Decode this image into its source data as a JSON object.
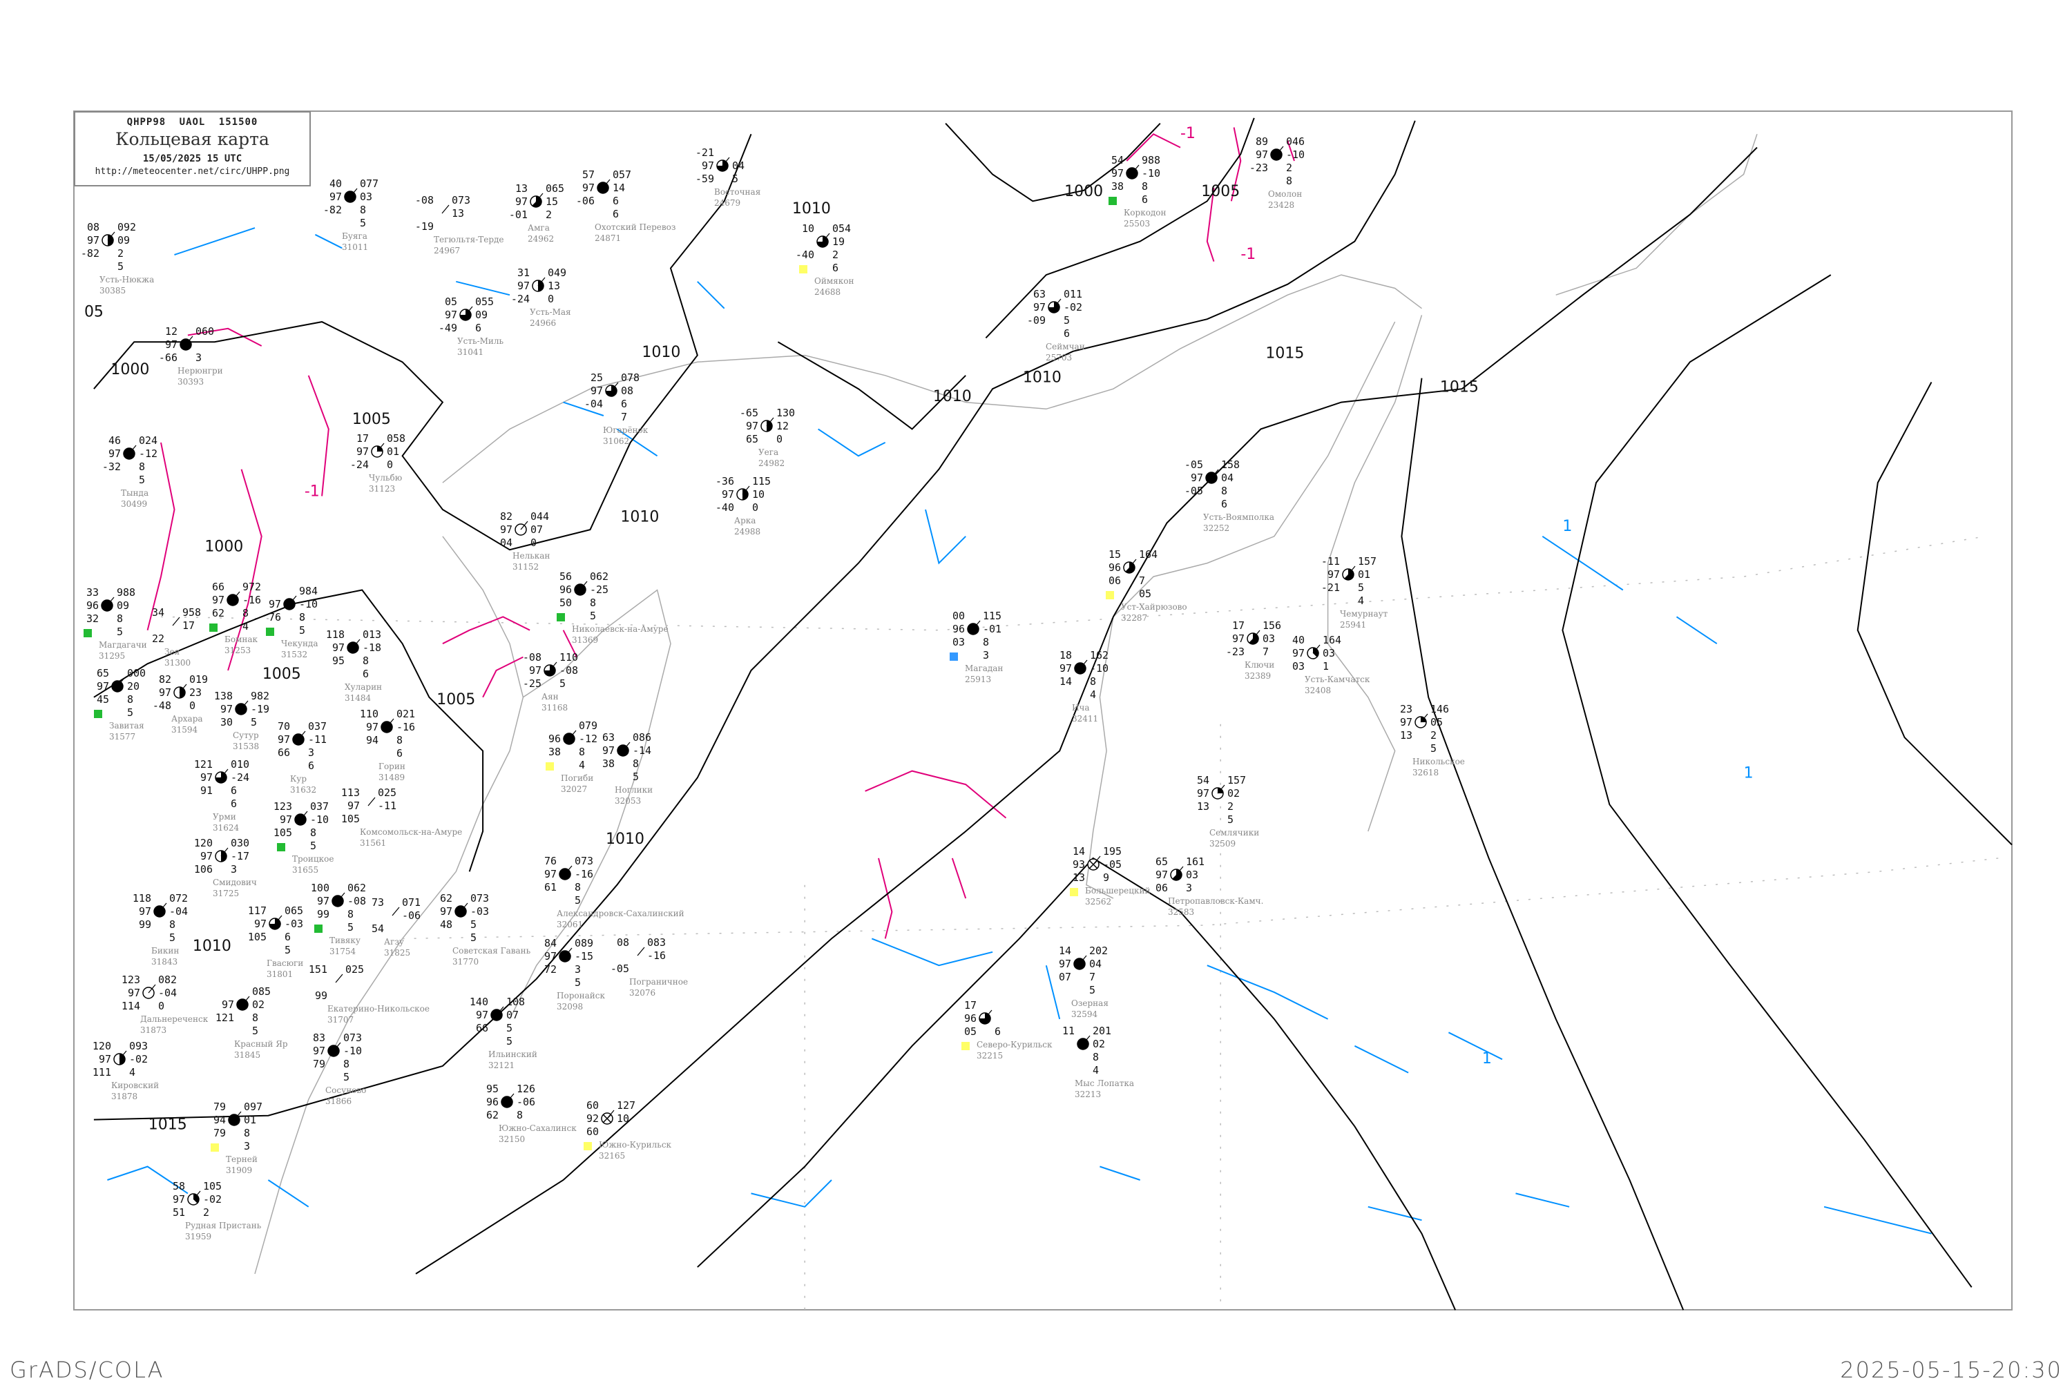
{
  "header": {
    "code": "QHPP98 UAOL 151500",
    "title": "Кольцевая карта",
    "datetime": "15/05/2025 15 UTC",
    "url": "http://meteocenter.net/circ/UHPP.png"
  },
  "footer": {
    "left": "GrADS/COLA",
    "right": "2025-05-15-20:30"
  },
  "colors": {
    "isobar": "#000000",
    "coast": "#aaaaaa",
    "temp_minus": "#e0007a",
    "temp_plus": "#0090ff",
    "precip_green": "#22bb33",
    "precip_yellow": "#ffff66",
    "precip_blue": "#3399ff",
    "frame": "#999999"
  },
  "isobar_labels": [
    "1000",
    "1000",
    "1000",
    "1005",
    "1005",
    "1005",
    "1005",
    "1010",
    "1010",
    "1010",
    "1010",
    "1010",
    "1010",
    "1010",
    "1015",
    "1015",
    "1015",
    "05"
  ],
  "isotherm_labels": [
    "-1",
    "-1",
    "-1",
    "1",
    "1",
    "1"
  ],
  "stations": [
    {
      "name": "Усть-Нюкжа",
      "id": "30385",
      "t": "08",
      "vv": "97",
      "td": "-82",
      "p": "092",
      "dp": "09",
      "extra": [
        "2",
        "5"
      ],
      "cover": 4
    },
    {
      "name": "Буяга",
      "id": "31011",
      "t": "40",
      "vv": "97",
      "td": "-82",
      "p": "077",
      "dp": "03",
      "extra": [
        "8",
        "5"
      ],
      "cover": 8
    },
    {
      "name": "Тегюльтя-Терде",
      "id": "24967",
      "t": "-08",
      "vv": "",
      "td": "-19",
      "p": "073",
      "dp": "13",
      "extra": [],
      "cover": -1
    },
    {
      "name": "Амга",
      "id": "24962",
      "t": "13",
      "vv": "97",
      "td": "-01",
      "p": "065",
      "dp": "15",
      "extra": [
        "2"
      ],
      "cover": 5
    },
    {
      "name": "Охотский Перевоз",
      "id": "24871",
      "t": "57",
      "vv": "97",
      "td": "-06",
      "p": "057",
      "dp": "14",
      "extra": [
        "6",
        "6"
      ],
      "cover": 8
    },
    {
      "name": "Усть-Мая",
      "id": "24966",
      "t": "31",
      "vv": "97",
      "td": "-24",
      "p": "049",
      "dp": "13",
      "extra": [
        "0"
      ],
      "cover": 4
    },
    {
      "name": "Усть-Миль",
      "id": "31041",
      "t": "05",
      "vv": "97",
      "td": "-49",
      "p": "055",
      "dp": "09",
      "extra": [
        "6"
      ],
      "cover": 6
    },
    {
      "name": "Нерюнгри",
      "id": "30393",
      "t": "12",
      "vv": "97",
      "td": "-66",
      "p": "060",
      "dp": "",
      "extra": [
        "3"
      ],
      "cover": 8
    },
    {
      "name": "Чульбю",
      "id": "31123",
      "t": "17",
      "vv": "97",
      "td": "-24",
      "p": "058",
      "dp": "01",
      "extra": [
        "0"
      ],
      "cover": 2
    },
    {
      "name": "Югарёнок",
      "id": "31062",
      "t": "25",
      "vv": "97",
      "td": "-04",
      "p": "078",
      "dp": "08",
      "extra": [
        "6",
        "7"
      ],
      "cover": 6
    },
    {
      "name": "Тында",
      "id": "30499",
      "t": "46",
      "vv": "97",
      "td": "-32",
      "p": "024",
      "dp": "-12",
      "extra": [
        "8",
        "5"
      ],
      "cover": 8
    },
    {
      "name": "Нелькан",
      "id": "31152",
      "t": "82",
      "vv": "97",
      "td": "04",
      "p": "044",
      "dp": "07",
      "extra": [
        "0"
      ],
      "cover": 0
    },
    {
      "name": "Магдагачи",
      "id": "31295",
      "t": "33",
      "vv": "96",
      "td": "32",
      "p": "988",
      "dp": "09",
      "extra": [
        "8",
        "5"
      ],
      "cover": 8
    },
    {
      "name": "Бомнак",
      "id": "31253",
      "t": "66",
      "vv": "97",
      "td": "62",
      "p": "972",
      "dp": "-16",
      "extra": [
        "8",
        "4"
      ],
      "cover": 8
    },
    {
      "name": "Зея",
      "id": "31300",
      "t": "34",
      "vv": "",
      "td": "22",
      "p": "958",
      "dp": "17",
      "extra": [],
      "cover": -1
    },
    {
      "name": "Аян",
      "id": "31168",
      "t": "-08",
      "vv": "97",
      "td": "-25",
      "p": "110",
      "dp": "-08",
      "extra": [
        "5"
      ],
      "cover": 6
    },
    {
      "name": "Восточная",
      "id": "24679",
      "t": "-21",
      "vv": "97",
      "td": "-59",
      "p": "",
      "dp": "04",
      "extra": [
        "5"
      ],
      "cover": 6
    },
    {
      "name": "Оймякон",
      "id": "24688",
      "t": "10",
      "vv": "",
      "td": "-40",
      "p": "054",
      "dp": "19",
      "extra": [
        "2",
        "6"
      ],
      "cover": 6
    },
    {
      "name": "Коркодон",
      "id": "25503",
      "t": "54",
      "vv": "97",
      "td": "38",
      "p": "988",
      "dp": "-10",
      "extra": [
        "8",
        "6"
      ],
      "cover": 8
    },
    {
      "name": "Омолон",
      "id": "23428",
      "t": "89",
      "vv": "97",
      "td": "-23",
      "p": "046",
      "dp": "-10",
      "extra": [
        "2",
        "8"
      ],
      "cover": 8
    },
    {
      "name": "Сеймчан",
      "id": "25703",
      "t": "63",
      "vv": "97",
      "td": "-09",
      "p": "011",
      "dp": "-02",
      "extra": [
        "5",
        "6"
      ],
      "cover": 6
    },
    {
      "name": "Уега",
      "id": "24982",
      "t": "-65",
      "vv": "97",
      "td": "65",
      "p": "130",
      "dp": "12",
      "extra": [
        "0"
      ],
      "cover": 4
    },
    {
      "name": "Арка",
      "id": "24988",
      "t": "-36",
      "vv": "97",
      "td": "-40",
      "p": "115",
      "dp": "10",
      "extra": [
        "0"
      ],
      "cover": 4
    },
    {
      "name": "Магадан",
      "id": "25913",
      "t": "00",
      "vv": "96",
      "td": "03",
      "p": "115",
      "dp": "-01",
      "extra": [
        "8",
        "3"
      ],
      "cover": 8
    },
    {
      "name": "Чемурнаут",
      "id": "25941",
      "t": "-11",
      "vv": "97",
      "td": "-21",
      "p": "157",
      "dp": "01",
      "extra": [
        "5",
        "4"
      ],
      "cover": 5
    },
    {
      "name": "Усть-Воямполка",
      "id": "32252",
      "t": "-05",
      "vv": "97",
      "td": "-05",
      "p": "158",
      "dp": "04",
      "extra": [
        "8",
        "6"
      ],
      "cover": 8
    },
    {
      "name": "Уст-Хайрюзово",
      "id": "32287",
      "t": "15",
      "vv": "96",
      "td": "06",
      "p": "164",
      "dp": "",
      "extra": [
        "7",
        "05"
      ],
      "cover": 5
    },
    {
      "name": "Ключи",
      "id": "32389",
      "t": "17",
      "vv": "97",
      "td": "-23",
      "p": "156",
      "dp": "03",
      "extra": [
        "7"
      ],
      "cover": 5
    },
    {
      "name": "Усть-Камчатск",
      "id": "32408",
      "t": "40",
      "vv": "97",
      "td": "03",
      "p": "164",
      "dp": "03",
      "extra": [
        "1"
      ],
      "cover": 3
    },
    {
      "name": "Ича",
      "id": "32411",
      "t": "18",
      "vv": "97",
      "td": "14",
      "p": "162",
      "dp": "-10",
      "extra": [
        "8",
        "4"
      ],
      "cover": 8
    },
    {
      "name": "Никольское",
      "id": "32618",
      "t": "23",
      "vv": "97",
      "td": "13",
      "p": "146",
      "dp": "05",
      "extra": [
        "2",
        "5"
      ],
      "cover": 2
    },
    {
      "name": "Семлячики",
      "id": "32509",
      "t": "54",
      "vv": "97",
      "td": "13",
      "p": "157",
      "dp": "02",
      "extra": [
        "2",
        "5"
      ],
      "cover": 2
    },
    {
      "name": "Большерецкий",
      "id": "32562",
      "t": "14",
      "vv": "93",
      "td": "13",
      "p": "195",
      "dp": "-05",
      "extra": [
        "9"
      ],
      "cover": 9
    },
    {
      "name": "Петропавловск-Камч.",
      "id": "32583",
      "t": "65",
      "vv": "97",
      "td": "06",
      "p": "161",
      "dp": "03",
      "extra": [
        "3"
      ],
      "cover": 5
    },
    {
      "name": "Озерная",
      "id": "32594",
      "t": "14",
      "vv": "97",
      "td": "07",
      "p": "202",
      "dp": "04",
      "extra": [
        "7",
        "5"
      ],
      "cover": 8
    },
    {
      "name": "Мыс Лопатка",
      "id": "32213",
      "t": "11",
      "vv": "",
      "td": "",
      "p": "201",
      "dp": "02",
      "extra": [
        "8",
        "4"
      ],
      "cover": 8
    },
    {
      "name": "Северо-Курильск",
      "id": "32215",
      "t": "17",
      "vv": "96",
      "td": "05",
      "p": "",
      "dp": "",
      "extra": [
        "6"
      ],
      "cover": 6
    },
    {
      "name": "Завитая",
      "id": "31577",
      "t": "65",
      "vv": "97",
      "td": "45",
      "p": "000",
      "dp": "20",
      "extra": [
        "8",
        "5"
      ],
      "cover": 8
    },
    {
      "name": "Архара",
      "id": "31594",
      "t": "82",
      "vv": "97",
      "td": "-48",
      "p": "019",
      "dp": "23",
      "extra": [
        "0"
      ],
      "cover": 4
    },
    {
      "name": "Сутур",
      "id": "31538",
      "t": "138",
      "vv": "97",
      "td": "30",
      "p": "982",
      "dp": "-19",
      "extra": [
        "5"
      ],
      "cover": 8
    },
    {
      "name": "Чекунда",
      "id": "31532",
      "t": "",
      "vv": "97",
      "td": "76",
      "p": "984",
      "dp": "-10",
      "extra": [
        "8",
        "5"
      ],
      "cover": 8
    },
    {
      "name": "Хуларин",
      "id": "31484",
      "t": "118",
      "vv": "97",
      "td": "95",
      "p": "013",
      "dp": "-18",
      "extra": [
        "8",
        "6"
      ],
      "cover": 8
    },
    {
      "name": "Горин",
      "id": "31489",
      "t": "110",
      "vv": "97",
      "td": "94",
      "p": "021",
      "dp": "-16",
      "extra": [
        "8",
        "6"
      ],
      "cover": 8
    },
    {
      "name": "Кур",
      "id": "31632",
      "t": "70",
      "vv": "97",
      "td": "66",
      "p": "037",
      "dp": "-11",
      "extra": [
        "3",
        "6"
      ],
      "cover": 8
    },
    {
      "name": "Урми",
      "id": "31624",
      "t": "121",
      "vv": "97",
      "td": "91",
      "p": "010",
      "dp": "-24",
      "extra": [
        "6",
        "6"
      ],
      "cover": 6
    },
    {
      "name": "Комсомольск-на-Амуре",
      "id": "31561",
      "t": "113",
      "vv": "97",
      "td": "105",
      "p": "025",
      "dp": "-11",
      "extra": [],
      "cover": -1
    },
    {
      "name": "Троицкое",
      "id": "31655",
      "t": "123",
      "vv": "97",
      "td": "105",
      "p": "037",
      "dp": "-10",
      "extra": [
        "8",
        "5"
      ],
      "cover": 8
    },
    {
      "name": "Тивяку",
      "id": "31754",
      "t": "100",
      "vv": "97",
      "td": "99",
      "p": "062",
      "dp": "-08",
      "extra": [
        "8",
        "5"
      ],
      "cover": 8
    },
    {
      "name": "Гвасюги",
      "id": "31801",
      "t": "117",
      "vv": "97",
      "td": "105",
      "p": "065",
      "dp": "-03",
      "extra": [
        "6",
        "5"
      ],
      "cover": 6
    },
    {
      "name": "Советская Гавань",
      "id": "31770",
      "t": "62",
      "vv": "97",
      "td": "48",
      "p": "073",
      "dp": "-03",
      "extra": [
        "5",
        "5"
      ],
      "cover": 8
    },
    {
      "name": "Николаевск-на-Амуре",
      "id": "31369",
      "t": "56",
      "vv": "96",
      "td": "50",
      "p": "062",
      "dp": "-25",
      "extra": [
        "8",
        "5"
      ],
      "cover": 8
    },
    {
      "name": "Погиби",
      "id": "32027",
      "t": "",
      "vv": "96",
      "td": "38",
      "p": "079",
      "dp": "-12",
      "extra": [
        "8",
        "4"
      ],
      "cover": 8
    },
    {
      "name": "Ноглики",
      "id": "32053",
      "t": "63",
      "vv": "97",
      "td": "38",
      "p": "086",
      "dp": "-14",
      "extra": [
        "8",
        "5"
      ],
      "cover": 8
    },
    {
      "name": "Александровск-Сахалинский",
      "id": "32061",
      "t": "76",
      "vv": "97",
      "td": "61",
      "p": "073",
      "dp": "-16",
      "extra": [
        "8",
        "5"
      ],
      "cover": 8
    },
    {
      "name": "Поронайск",
      "id": "32098",
      "t": "84",
      "vv": "97",
      "td": "72",
      "p": "089",
      "dp": "-15",
      "extra": [
        "3",
        "5"
      ],
      "cover": 8
    },
    {
      "name": "Ильинский",
      "id": "32121",
      "t": "140",
      "vv": "97",
      "td": "66",
      "p": "108",
      "dp": "07",
      "extra": [
        "5",
        "5"
      ],
      "cover": 8
    },
    {
      "name": "Южно-Сахалинск",
      "id": "32150",
      "t": "95",
      "vv": "96",
      "td": "62",
      "p": "126",
      "dp": "-06",
      "extra": [
        "8"
      ],
      "cover": 8
    },
    {
      "name": "Терней",
      "id": "31909",
      "t": "79",
      "vv": "94",
      "td": "79",
      "p": "097",
      "dp": "01",
      "extra": [
        "8",
        "3"
      ],
      "cover": 8
    },
    {
      "name": "Рудная Пристань",
      "id": "31959",
      "t": "58",
      "vv": "97",
      "td": "51",
      "p": "105",
      "dp": "-02",
      "extra": [
        "2"
      ],
      "cover": 3
    },
    {
      "name": "Сосуново",
      "id": "31866",
      "t": "83",
      "vv": "97",
      "td": "79",
      "p": "073",
      "dp": "-10",
      "extra": [
        "8",
        "5"
      ],
      "cover": 8
    },
    {
      "name": "Дальнереченск",
      "id": "31873",
      "t": "123",
      "vv": "97",
      "td": "114",
      "p": "082",
      "dp": "-04",
      "extra": [
        "0"
      ],
      "cover": 0
    },
    {
      "name": "Кировский",
      "id": "31878",
      "t": "120",
      "vv": "97",
      "td": "111",
      "p": "093",
      "dp": "-02",
      "extra": [
        "4"
      ],
      "cover": 4
    },
    {
      "name": "Бикин",
      "id": "31843",
      "t": "118",
      "vv": "97",
      "td": "99",
      "p": "072",
      "dp": "-04",
      "extra": [
        "8",
        "5"
      ],
      "cover": 8
    },
    {
      "name": "Красный Яр",
      "id": "31845",
      "t": "",
      "vv": "97",
      "td": "121",
      "p": "085",
      "dp": "02",
      "extra": [
        "8",
        "5"
      ],
      "cover": 8
    },
    {
      "name": "Екатерино-Никольское",
      "id": "31707",
      "t": "151",
      "vv": "",
      "td": "99",
      "p": "025",
      "dp": "",
      "extra": [],
      "cover": -1
    },
    {
      "name": "Смидович",
      "id": "31725",
      "t": "120",
      "vv": "97",
      "td": "106",
      "p": "030",
      "dp": "-17",
      "extra": [
        "3"
      ],
      "cover": 4
    },
    {
      "name": "Агзу",
      "id": "31825",
      "t": "73",
      "vv": "",
      "td": "54",
      "p": "071",
      "dp": "-06",
      "extra": [],
      "cover": -1
    },
    {
      "name": "Пограничное",
      "id": "32076",
      "t": "08",
      "vv": "",
      "td": "-05",
      "p": "083",
      "dp": "-16",
      "extra": [],
      "cover": -1
    },
    {
      "name": "Южно-Курильск",
      "id": "32165",
      "t": "60",
      "vv": "92",
      "td": "60",
      "p": "127",
      "dp": "10",
      "extra": [],
      "cover": 9
    }
  ]
}
